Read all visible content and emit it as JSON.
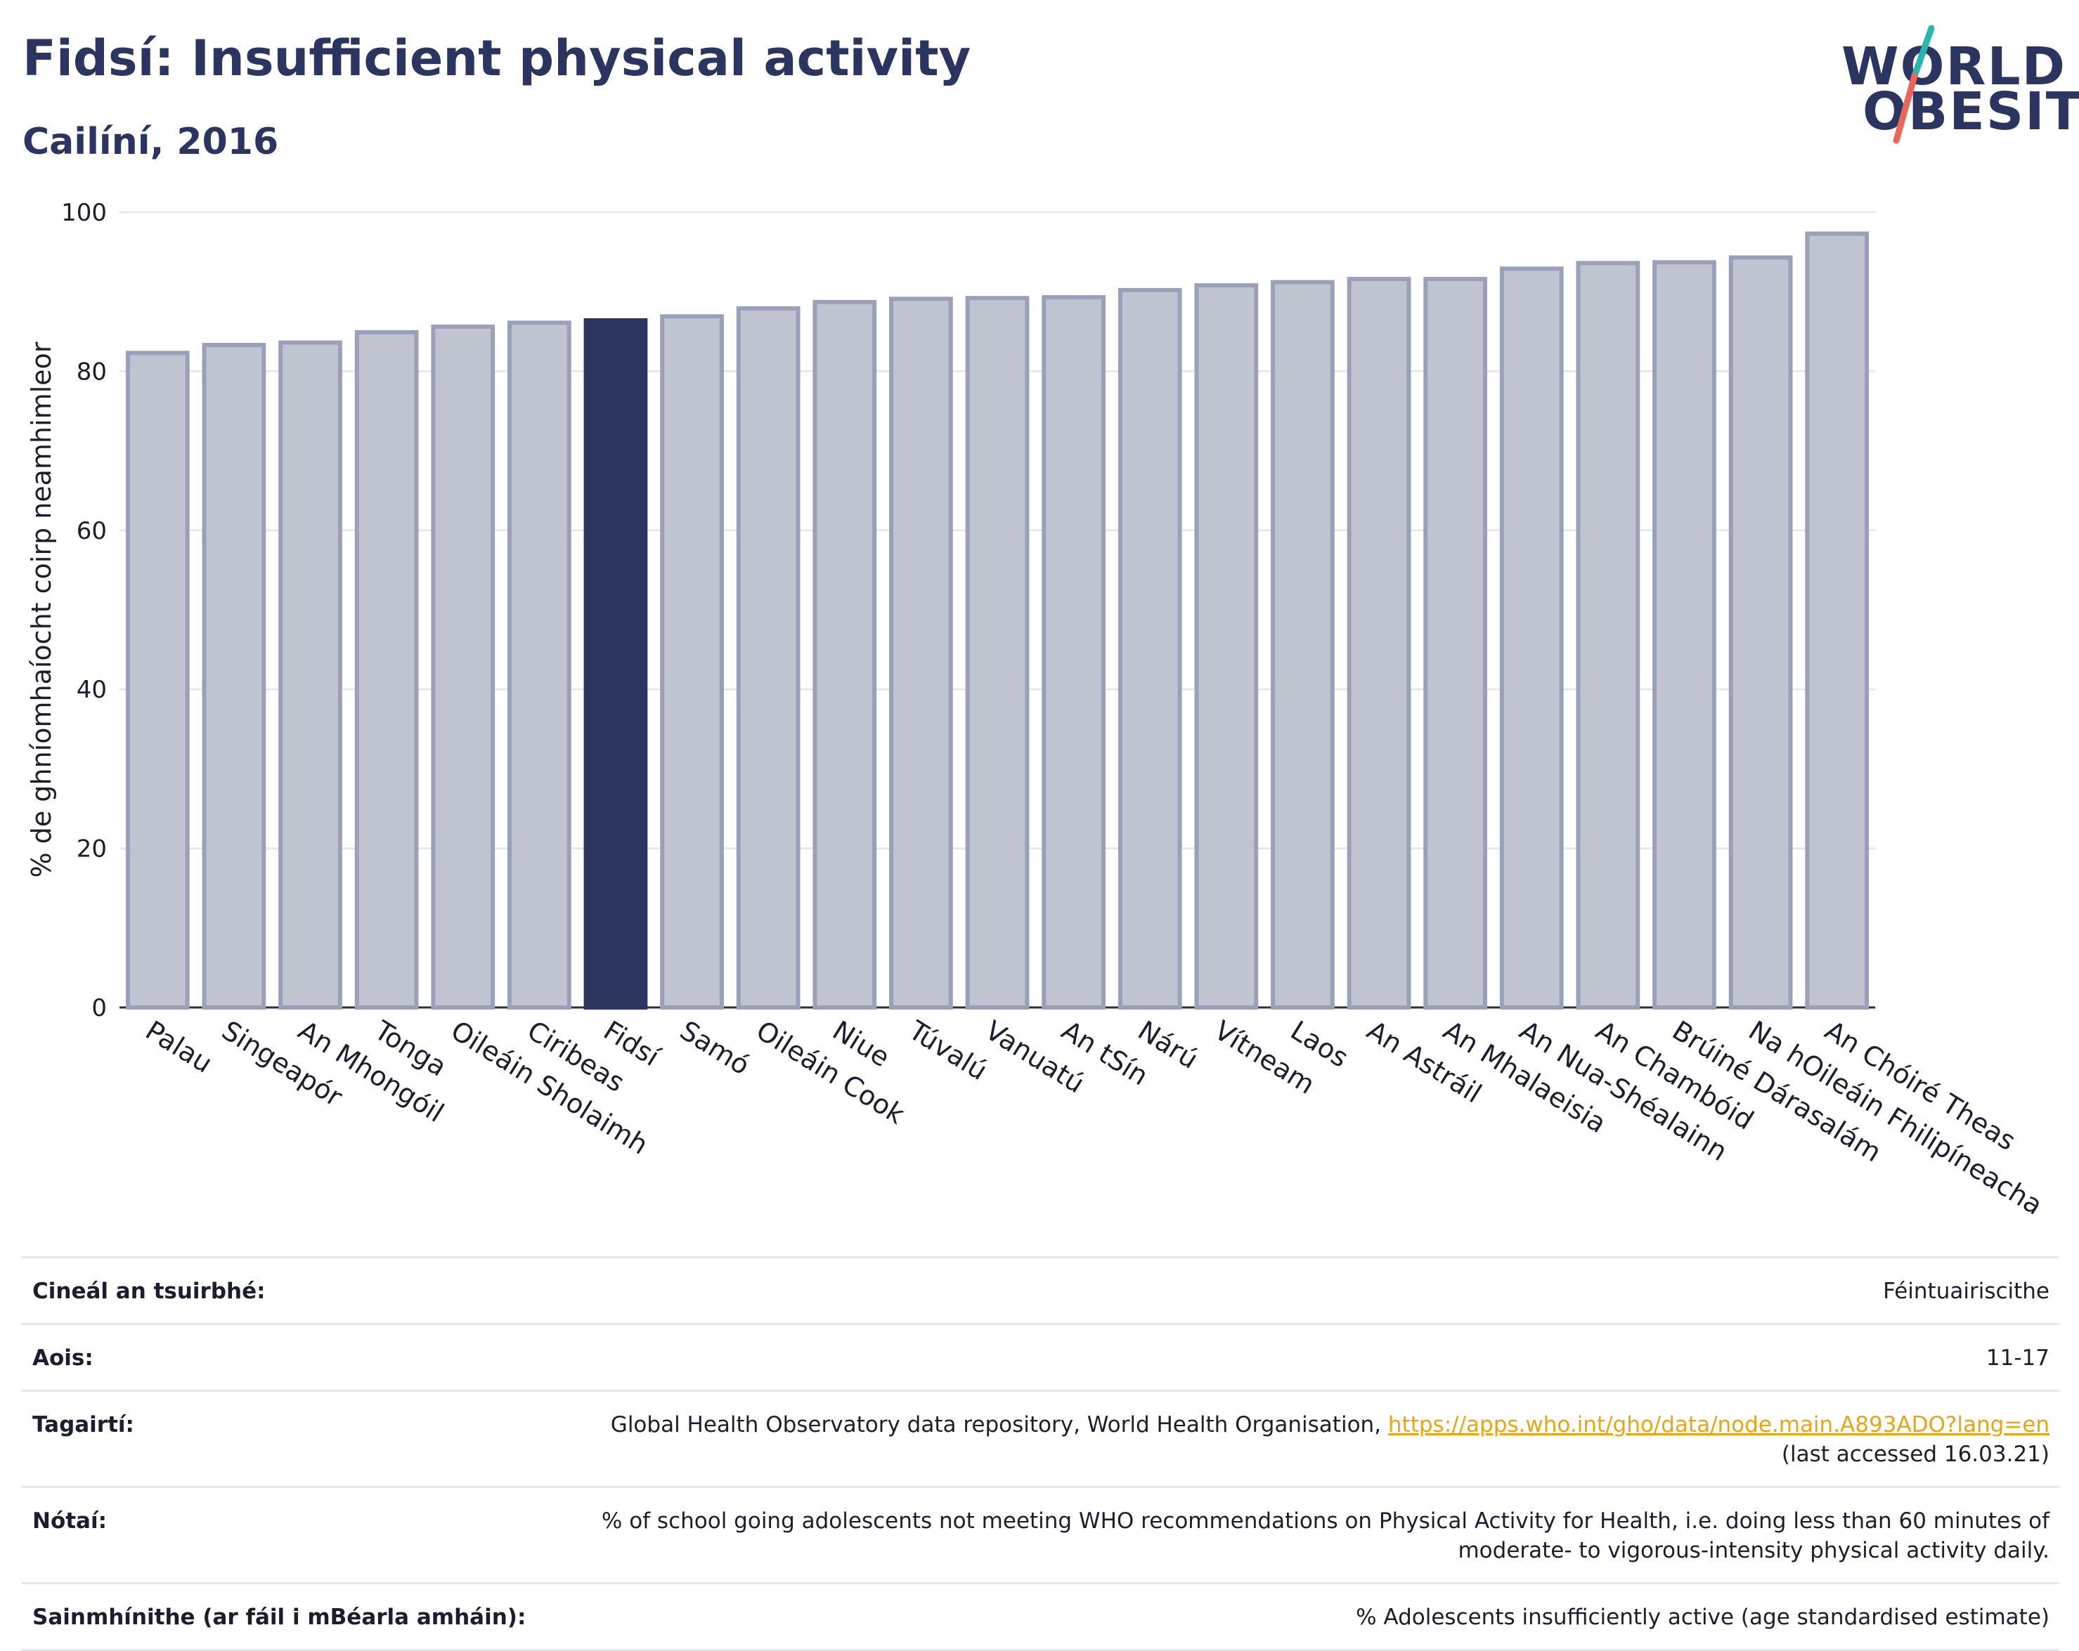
{
  "header": {
    "title": "Fidsí: Insufficient physical activity",
    "subtitle": "Cailíní, 2016"
  },
  "logo": {
    "line1": "WORLD",
    "line2": "OBESITY",
    "accent_teal": "#2cb5b0",
    "accent_coral": "#e8665a",
    "text_color": "#2b3560"
  },
  "chart_data": {
    "type": "bar",
    "ylabel": "% de ghníomhaíocht coirp neamhimleor",
    "ylim": [
      0,
      100
    ],
    "yticks": [
      0,
      20,
      40,
      60,
      80,
      100
    ],
    "grid": true,
    "categories": [
      "Palau",
      "Singeapór",
      "An Mhongóil",
      "Tonga",
      "Oileáin Sholaimh",
      "Ciribeas",
      "Fidsí",
      "Samó",
      "Oileáin Cook",
      "Niue",
      "Túvalú",
      "Vanuatú",
      "An tSín",
      "Nárú",
      "Vítneam",
      "Laos",
      "An Astráil",
      "An Mhalaeisia",
      "An Nua-Shéalainn",
      "An Chambóid",
      "Brúiné Dárasalám",
      "Na hOileáin Fhilipíneacha",
      "An Chóiré Theas"
    ],
    "values": [
      82.3,
      83.3,
      83.6,
      84.9,
      85.6,
      86.1,
      86.4,
      86.9,
      87.9,
      88.7,
      89.1,
      89.2,
      89.3,
      90.2,
      90.8,
      91.2,
      91.6,
      91.6,
      92.9,
      93.6,
      93.7,
      94.3,
      97.3
    ],
    "highlight": "Fidsí",
    "colors": {
      "bar": "#c0c3d0",
      "bar_border": "#9aa0b8",
      "highlight": "#2b3560",
      "grid": "#e6e8f0"
    }
  },
  "meta": {
    "survey_type_label": "Cineál an tsuirbhé:",
    "survey_type_value": "Féintuairiscithe",
    "age_label": "Aois:",
    "age_value": "11-17",
    "references_label": "Tagairtí:",
    "references_text": "Global Health Observatory data repository, World Health Organisation, ",
    "references_link": "https://apps.who.int/gho/data/node.main.A893ADO?lang=en",
    "references_accessed": "(last accessed 16.03.21)",
    "notes_label": "Nótaí:",
    "notes_value": "% of school going adolescents not meeting WHO recommendations on Physical Activity for Health, i.e. doing less than 60 minutes of moderate- to vigorous-intensity physical activity daily.",
    "definitions_label": "Sainmhínithe (ar fáil i mBéarla amháin):",
    "definitions_value": "% Adolescents insufficiently active (age standardised estimate)"
  }
}
